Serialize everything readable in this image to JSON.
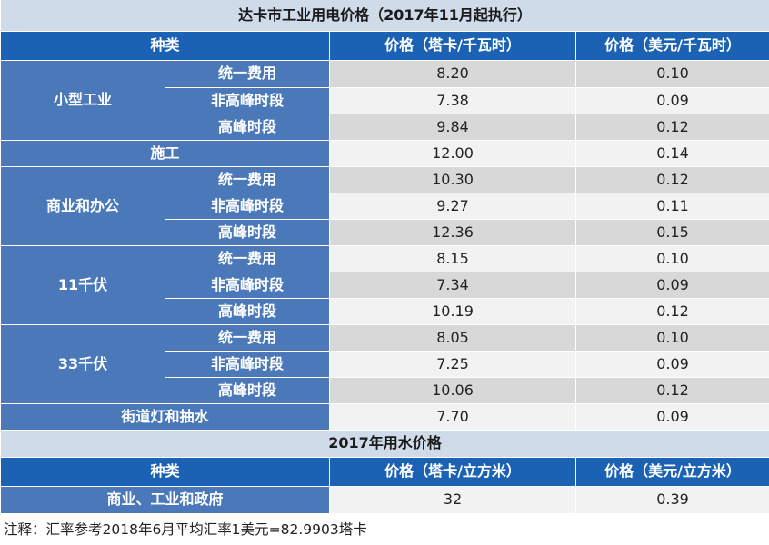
{
  "electricity": {
    "title": "达卡市工业用电价格（2017年11月起执行）",
    "headers": [
      "种类",
      "价格（塔卡/千瓦时）",
      "价格（美元/千瓦时）"
    ],
    "groups": [
      {
        "name": "小型工业",
        "rows": [
          {
            "label": "统一费用",
            "taka": "8.20",
            "usd": "0.10"
          },
          {
            "label": "非高峰时段",
            "taka": "7.38",
            "usd": "0.09"
          },
          {
            "label": "高峰时段",
            "taka": "9.84",
            "usd": "0.12"
          }
        ]
      },
      {
        "name": "施工",
        "taka": "12.00",
        "usd": "0.14"
      },
      {
        "name": "商业和办公",
        "rows": [
          {
            "label": "统一费用",
            "taka": "10.30",
            "usd": "0.12"
          },
          {
            "label": "非高峰时段",
            "taka": "9.27",
            "usd": "0.11"
          },
          {
            "label": "高峰时段",
            "taka": "12.36",
            "usd": "0.15"
          }
        ]
      },
      {
        "name": "11千伏",
        "rows": [
          {
            "label": "统一费用",
            "taka": "8.15",
            "usd": "0.10"
          },
          {
            "label": "非高峰时段",
            "taka": "7.34",
            "usd": "0.09"
          },
          {
            "label": "高峰时段",
            "taka": "10.19",
            "usd": "0.12"
          }
        ]
      },
      {
        "name": "33千伏",
        "rows": [
          {
            "label": "统一费用",
            "taka": "8.05",
            "usd": "0.10"
          },
          {
            "label": "非高峰时段",
            "taka": "7.25",
            "usd": "0.09"
          },
          {
            "label": "高峰时段",
            "taka": "10.06",
            "usd": "0.12"
          }
        ]
      },
      {
        "name": "街道灯和抽水",
        "taka": "7.70",
        "usd": "0.09"
      }
    ]
  },
  "water": {
    "title": "2017年用水价格",
    "headers": [
      "种类",
      "价格（塔卡/立方米）",
      "价格（美元/立方米）"
    ],
    "rows": [
      {
        "name": "商业、工业和政府",
        "taka": "32",
        "usd": "0.39"
      }
    ]
  },
  "note": "注释：汇率参考2018年6月平均汇率1美元=82.9903塔卡",
  "colors": {
    "title_bg": "#cfdbe9",
    "header_bg": "#1b62b4",
    "category_bg": "#4a78b9",
    "row_gray": "#d8d8d8",
    "row_light": "#f2f2f2"
  }
}
